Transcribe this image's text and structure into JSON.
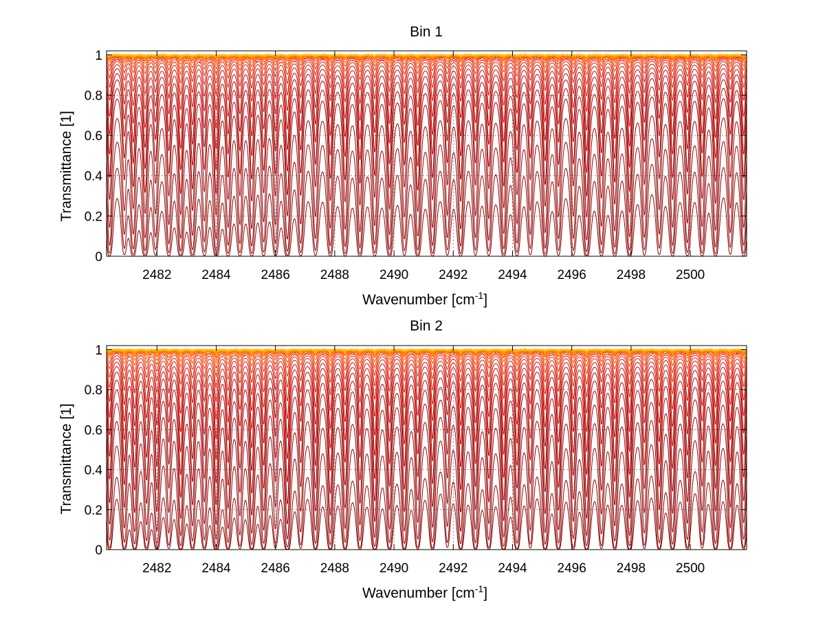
{
  "chart_data": [
    {
      "type": "line",
      "title": "Bin 1",
      "xlabel": "Wavenumber [cm",
      "xlabel_superscript": "-1",
      "xlabel_suffix": "]",
      "ylabel": "Transmittance [1]",
      "xlim": [
        2480.3,
        2501.9
      ],
      "ylim": [
        0,
        1.02
      ],
      "xticks": [
        2482,
        2484,
        2486,
        2488,
        2490,
        2492,
        2494,
        2496,
        2498,
        2500
      ],
      "xtick_labels": [
        "2482",
        "2484",
        "2486",
        "2488",
        "2490",
        "2492",
        "2494",
        "2496",
        "2498",
        "2500"
      ],
      "yticks": [
        0,
        0.2,
        0.4,
        0.6,
        0.8,
        1
      ],
      "ytick_labels": [
        "0",
        "0.2",
        "0.4",
        "0.6",
        "0.8",
        "1"
      ],
      "grid": true,
      "legend": "none",
      "colormap": [
        "#8b0000",
        "#b80000",
        "#e01a00",
        "#ff4d00",
        "#ff8a00",
        "#ffc000"
      ],
      "curve_levels": [
        0.005,
        0.03,
        0.09,
        0.2,
        0.35,
        0.46,
        0.57,
        0.66,
        0.74,
        0.81,
        0.865,
        0.905,
        0.935,
        0.955,
        0.97,
        0.98,
        0.988,
        0.993,
        0.996,
        0.998
      ],
      "absorption_lines": [
        2480.4,
        2480.9,
        2481.2,
        2481.6,
        2481.95,
        2482.4,
        2482.8,
        2483.2,
        2483.6,
        2484.0,
        2484.4,
        2484.8,
        2485.2,
        2485.6,
        2486.0,
        2486.4,
        2486.85,
        2487.35,
        2487.85,
        2488.35,
        2488.85,
        2489.35,
        2489.85,
        2490.35,
        2490.8,
        2491.3,
        2491.8,
        2492.25,
        2492.75,
        2493.2,
        2493.7,
        2494.15,
        2494.6,
        2495.1,
        2495.55,
        2496.05,
        2496.5,
        2497.0,
        2497.45,
        2497.95,
        2498.45,
        2498.95,
        2499.4,
        2499.9,
        2500.4,
        2500.85,
        2501.35,
        2501.8
      ]
    },
    {
      "type": "line",
      "title": "Bin 2",
      "xlabel": "Wavenumber [cm",
      "xlabel_superscript": "-1",
      "xlabel_suffix": "]",
      "ylabel": "Transmittance [1]",
      "xlim": [
        2480.3,
        2501.9
      ],
      "ylim": [
        0,
        1.02
      ],
      "xticks": [
        2482,
        2484,
        2486,
        2488,
        2490,
        2492,
        2494,
        2496,
        2498,
        2500
      ],
      "xtick_labels": [
        "2482",
        "2484",
        "2486",
        "2488",
        "2490",
        "2492",
        "2494",
        "2496",
        "2498",
        "2500"
      ],
      "yticks": [
        0,
        0.2,
        0.4,
        0.6,
        0.8,
        1
      ],
      "ytick_labels": [
        "0",
        "0.2",
        "0.4",
        "0.6",
        "0.8",
        "1"
      ],
      "grid": true,
      "legend": "none",
      "colormap": [
        "#8b0000",
        "#b80000",
        "#e01a00",
        "#ff4d00",
        "#ff8a00",
        "#ffc000"
      ],
      "curve_levels": [
        0.005,
        0.02,
        0.08,
        0.18,
        0.3,
        0.42,
        0.53,
        0.63,
        0.71,
        0.78,
        0.84,
        0.885,
        0.92,
        0.945,
        0.963,
        0.976,
        0.985,
        0.991,
        0.995,
        0.998
      ],
      "absorption_lines": [
        2480.4,
        2480.9,
        2481.25,
        2481.65,
        2482.0,
        2482.4,
        2482.8,
        2483.2,
        2483.6,
        2484.0,
        2484.4,
        2484.8,
        2485.2,
        2485.6,
        2486.0,
        2486.4,
        2486.85,
        2487.35,
        2487.85,
        2488.35,
        2488.85,
        2489.35,
        2489.85,
        2490.35,
        2490.8,
        2491.3,
        2491.8,
        2492.25,
        2492.75,
        2493.2,
        2493.7,
        2494.15,
        2494.6,
        2495.1,
        2495.55,
        2496.05,
        2496.5,
        2497.0,
        2497.45,
        2497.95,
        2498.45,
        2498.95,
        2499.4,
        2499.9,
        2500.4,
        2500.85,
        2501.35,
        2501.8
      ]
    }
  ]
}
